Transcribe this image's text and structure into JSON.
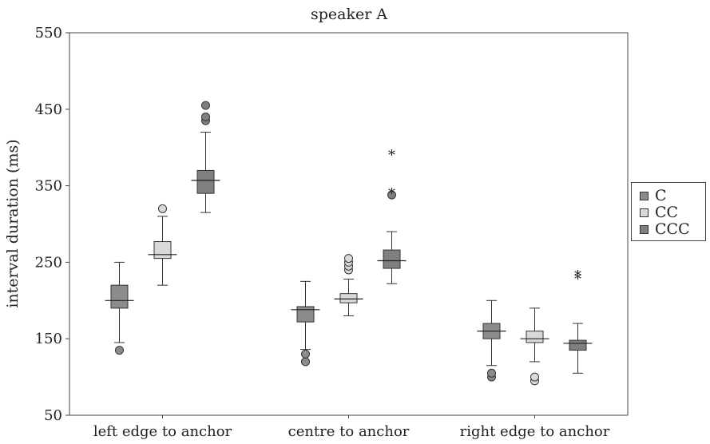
{
  "chart_data": {
    "type": "box",
    "title": "speaker A",
    "xlabel": "",
    "ylabel": "interval duration (ms)",
    "ylim": [
      50,
      550
    ],
    "yticks": [
      50,
      150,
      250,
      350,
      450,
      550
    ],
    "categories": [
      "left edge to anchor",
      "centre to anchor",
      "right edge to anchor"
    ],
    "grid": false,
    "legend_position": "right",
    "series": [
      {
        "name": "C",
        "color": "#8c8c8c",
        "boxes": [
          {
            "whisker_low": 145,
            "q1": 190,
            "median": 200,
            "q3": 220,
            "whisker_high": 250,
            "outliers": [
              135
            ],
            "extremes": []
          },
          {
            "whisker_low": 136,
            "q1": 172,
            "median": 188,
            "q3": 192,
            "whisker_high": 225,
            "outliers": [
              120,
              130
            ],
            "extremes": []
          },
          {
            "whisker_low": 115,
            "q1": 150,
            "median": 160,
            "q3": 170,
            "whisker_high": 200,
            "outliers": [
              100,
              105
            ],
            "extremes": []
          }
        ]
      },
      {
        "name": "CC",
        "color": "#d9d9d9",
        "boxes": [
          {
            "whisker_low": 220,
            "q1": 255,
            "median": 260,
            "q3": 277,
            "whisker_high": 310,
            "outliers": [
              320
            ],
            "extremes": []
          },
          {
            "whisker_low": 180,
            "q1": 197,
            "median": 202,
            "q3": 209,
            "whisker_high": 228,
            "outliers": [
              240,
              245,
              250,
              255
            ],
            "extremes": []
          },
          {
            "whisker_low": 120,
            "q1": 145,
            "median": 150,
            "q3": 160,
            "whisker_high": 190,
            "outliers": [
              95,
              100
            ],
            "extremes": []
          }
        ]
      },
      {
        "name": "CCC",
        "color": "#7f7f7f",
        "boxes": [
          {
            "whisker_low": 315,
            "q1": 340,
            "median": 357,
            "q3": 370,
            "whisker_high": 420,
            "outliers": [
              435,
              440,
              455
            ],
            "extremes": []
          },
          {
            "whisker_low": 222,
            "q1": 242,
            "median": 252,
            "q3": 266,
            "whisker_high": 290,
            "outliers": [
              338
            ],
            "extremes": [
              342,
              392
            ]
          },
          {
            "whisker_low": 105,
            "q1": 135,
            "median": 144,
            "q3": 148,
            "whisker_high": 170,
            "outliers": [],
            "extremes": [
              230,
              234
            ]
          }
        ]
      }
    ]
  }
}
